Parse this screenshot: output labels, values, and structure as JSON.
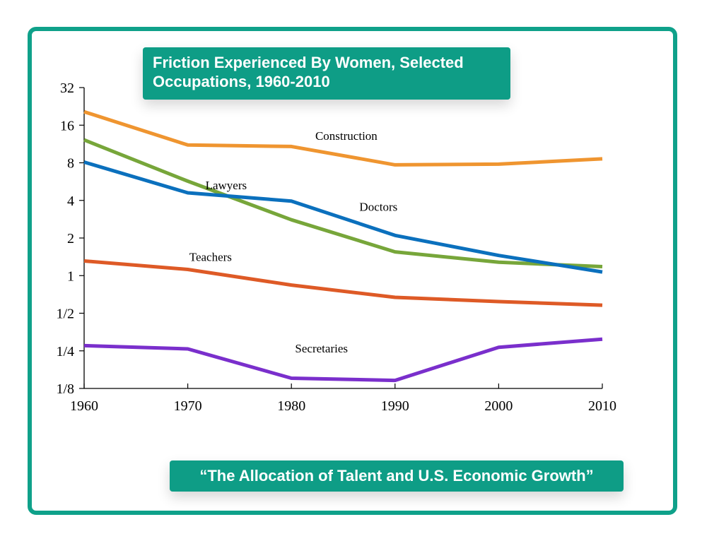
{
  "colors": {
    "frame": "#0fa18a",
    "badge": "#0e9d86",
    "badge_text": "#ffffff"
  },
  "chart_data": {
    "type": "line",
    "title": "Friction Experienced By Women, Selected Occupations, 1960-2010",
    "source": "“The Allocation of Talent and U.S. Economic Growth”",
    "xlabel": "",
    "ylabel": "",
    "x": [
      1960,
      1970,
      1980,
      1990,
      2000,
      2010
    ],
    "x_tick_labels": [
      "1960",
      "1970",
      "1980",
      "1990",
      "2000",
      "2010"
    ],
    "y_scale": "log2",
    "ylim": [
      0.125,
      32
    ],
    "y_ticks": [
      0.125,
      0.25,
      0.5,
      1,
      2,
      4,
      8,
      16,
      32
    ],
    "y_tick_labels": [
      "1/8",
      "1/4",
      "1/2",
      "1",
      "2",
      "4",
      "8",
      "16",
      "32"
    ],
    "series": [
      {
        "name": "Construction",
        "color": "#ef9530",
        "values": [
          20.5,
          11.1,
          10.8,
          7.7,
          7.8,
          8.6
        ]
      },
      {
        "name": "Lawyers",
        "color": "#77a63a",
        "values": [
          12.2,
          5.7,
          2.8,
          1.55,
          1.28,
          1.18
        ]
      },
      {
        "name": "Doctors",
        "color": "#0b70bd",
        "values": [
          8.1,
          4.6,
          3.95,
          2.1,
          1.45,
          1.07
        ]
      },
      {
        "name": "Teachers",
        "color": "#de5a26",
        "values": [
          1.31,
          1.12,
          0.84,
          0.67,
          0.62,
          0.58
        ]
      },
      {
        "name": "Secretaries",
        "color": "#7a2fcc",
        "values": [
          0.275,
          0.259,
          0.151,
          0.145,
          0.267,
          0.31
        ]
      }
    ],
    "grid": false,
    "legend": "inline labels near lines"
  }
}
